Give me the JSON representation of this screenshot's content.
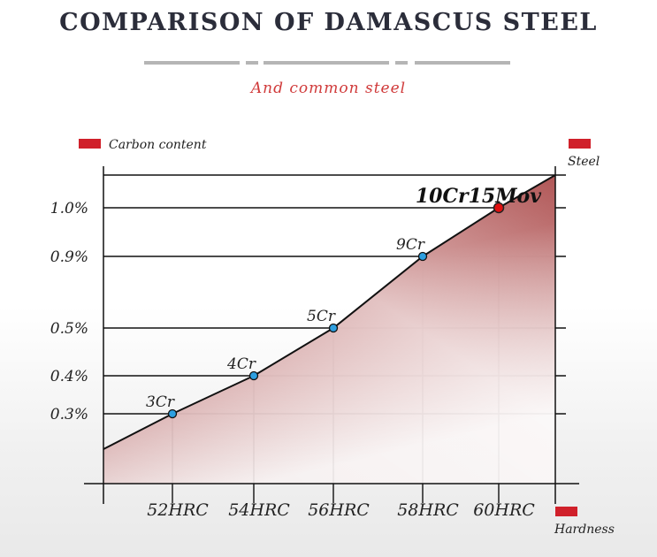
{
  "header": {
    "title": "COMPARISON OF DAMASCUS STEEL",
    "subtitle": "And common steel"
  },
  "legend": {
    "y_axis_name": "Carbon content",
    "series_name": "Steel",
    "x_axis_name": "Hardness"
  },
  "colors": {
    "fill": "#b45c5c",
    "accent": "#d0202a",
    "point": "#2e9fe0",
    "highlight_point": "#e01010"
  },
  "chart_data": {
    "type": "area",
    "title": "",
    "xlabel": "Hardness",
    "ylabel": "Carbon content",
    "x": [
      "52HRC",
      "54HRC",
      "56HRC",
      "58HRC",
      "60HRC"
    ],
    "x_numeric": [
      52,
      54,
      56,
      58,
      60
    ],
    "y_ticks": [
      "0.3%",
      "0.4%",
      "0.5%",
      "0.9%",
      "1.0%"
    ],
    "y_tick_values": [
      0.3,
      0.4,
      0.5,
      0.9,
      1.0
    ],
    "series": [
      {
        "name": "Steel",
        "points": [
          {
            "label": "3Cr",
            "x": 52,
            "y": 0.3
          },
          {
            "label": "4Cr",
            "x": 54,
            "y": 0.4
          },
          {
            "label": "5Cr",
            "x": 56,
            "y": 0.5
          },
          {
            "label": "9Cr",
            "x": 58,
            "y": 0.9
          },
          {
            "label": "10Cr15Mov",
            "x": 60,
            "y": 1.0,
            "highlight": true
          }
        ]
      }
    ],
    "grid": true,
    "legend_position": "top-left"
  }
}
